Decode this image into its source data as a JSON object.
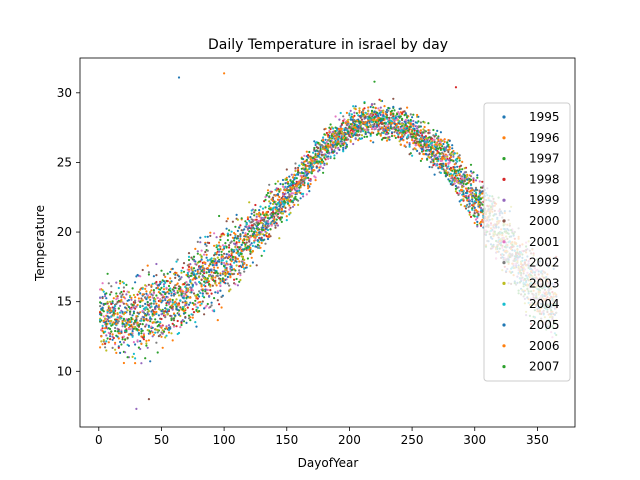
{
  "chart_data": {
    "type": "scatter",
    "title": "Daily Temperature in israel by day",
    "xlabel": "DayofYear",
    "ylabel": "Temperature",
    "xlim": [
      -15,
      380
    ],
    "ylim": [
      6,
      32.5
    ],
    "xticks": [
      0,
      50,
      100,
      150,
      200,
      250,
      300,
      350
    ],
    "yticks": [
      10,
      15,
      20,
      25,
      30
    ],
    "grid": false,
    "legend_position": "right",
    "x_domain": [
      1,
      365
    ],
    "series": [
      {
        "name": "1995",
        "color": "#1f77b4"
      },
      {
        "name": "1996",
        "color": "#ff7f0e"
      },
      {
        "name": "1997",
        "color": "#2ca02c"
      },
      {
        "name": "1998",
        "color": "#d62728"
      },
      {
        "name": "1999",
        "color": "#9467bd"
      },
      {
        "name": "2000",
        "color": "#8c564b"
      },
      {
        "name": "2001",
        "color": "#e377c2"
      },
      {
        "name": "2002",
        "color": "#7f7f7f"
      },
      {
        "name": "2003",
        "color": "#bcbd22"
      },
      {
        "name": "2004",
        "color": "#17becf"
      },
      {
        "name": "2005",
        "color": "#1f77b4"
      },
      {
        "name": "2006",
        "color": "#ff7f0e"
      },
      {
        "name": "2007",
        "color": "#2ca02c"
      }
    ],
    "trend": {
      "points": [
        [
          1,
          14
        ],
        [
          30,
          13.8
        ],
        [
          60,
          15
        ],
        [
          90,
          17
        ],
        [
          120,
          19.5
        ],
        [
          150,
          22.5
        ],
        [
          180,
          26
        ],
        [
          200,
          27.5
        ],
        [
          220,
          28
        ],
        [
          240,
          27.8
        ],
        [
          260,
          26.5
        ],
        [
          280,
          25
        ],
        [
          300,
          22.5
        ],
        [
          320,
          20
        ],
        [
          340,
          17
        ],
        [
          365,
          14.5
        ]
      ],
      "spread": [
        [
          1,
          1.8
        ],
        [
          90,
          2.0
        ],
        [
          150,
          1.0
        ],
        [
          200,
          0.8
        ],
        [
          260,
          0.9
        ],
        [
          320,
          1.5
        ],
        [
          365,
          1.8
        ]
      ]
    },
    "annotated_points": [
      {
        "x": 64,
        "y": 31.1
      },
      {
        "x": 100,
        "y": 31.4
      },
      {
        "x": 220,
        "y": 30.8
      },
      {
        "x": 285,
        "y": 30.4
      },
      {
        "x": 30,
        "y": 7.3
      },
      {
        "x": 40,
        "y": 8
      }
    ]
  }
}
